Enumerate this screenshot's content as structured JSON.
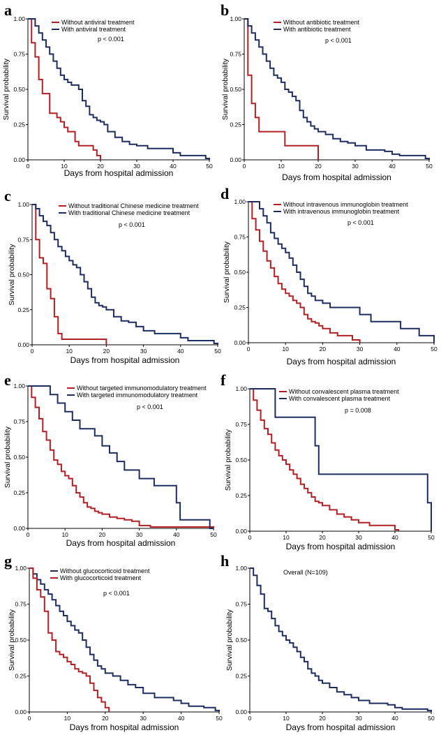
{
  "colors": {
    "red": "#b41f24",
    "navy": "#1d2d62",
    "axis": "#000000"
  },
  "chart_data": [
    {
      "type": "line",
      "panel": "a",
      "xlabel": "Days from hospital admission",
      "ylabel": "Survival probability",
      "xlim": [
        0,
        50
      ],
      "ylim": [
        0,
        1
      ],
      "xticks": [
        "0",
        "10",
        "20",
        "30",
        "40",
        "50"
      ],
      "yticks": [
        "0.00",
        "0.25",
        "0.50",
        "0.75",
        "1.00"
      ],
      "annotation": "p < 0.001",
      "series": [
        {
          "name": "Without antiviral treatment",
          "color": "red",
          "x": [
            0,
            1,
            2,
            3,
            4,
            5,
            6,
            7,
            8,
            9,
            10,
            11,
            12,
            13,
            14,
            15,
            16,
            17,
            18,
            19,
            20
          ],
          "y": [
            1.0,
            0.83,
            0.73,
            0.57,
            0.47,
            0.47,
            0.33,
            0.33,
            0.3,
            0.27,
            0.23,
            0.2,
            0.2,
            0.13,
            0.1,
            0.1,
            0.1,
            0.1,
            0.07,
            0.03,
            0.0
          ]
        },
        {
          "name": "With antiviral treatment",
          "color": "navy",
          "x": [
            0,
            2,
            3,
            4,
            5,
            6,
            7,
            8,
            9,
            10,
            11,
            12,
            13,
            14,
            15,
            16,
            17,
            18,
            19,
            20,
            21,
            22,
            24,
            26,
            28,
            30,
            33,
            38,
            40,
            42,
            46,
            49,
            50
          ],
          "y": [
            1.0,
            0.95,
            0.9,
            0.85,
            0.8,
            0.75,
            0.7,
            0.65,
            0.6,
            0.57,
            0.55,
            0.53,
            0.53,
            0.5,
            0.42,
            0.38,
            0.32,
            0.3,
            0.28,
            0.27,
            0.25,
            0.2,
            0.16,
            0.13,
            0.11,
            0.1,
            0.08,
            0.08,
            0.05,
            0.03,
            0.03,
            0.01,
            0.0
          ]
        }
      ]
    },
    {
      "type": "line",
      "panel": "b",
      "xlabel": "Days from hospital admission",
      "ylabel": "Survival probability",
      "xlim": [
        0,
        50
      ],
      "ylim": [
        0,
        1
      ],
      "xticks": [
        "0",
        "10",
        "20",
        "30",
        "40",
        "50"
      ],
      "yticks": [
        "0.00",
        "0.25",
        "0.50",
        "0.75",
        "1.00"
      ],
      "annotation": "p < 0.001",
      "series": [
        {
          "name": "Without antibiotic treatment",
          "color": "red",
          "x": [
            0,
            1,
            2,
            3,
            4,
            11,
            20
          ],
          "y": [
            1.0,
            0.6,
            0.4,
            0.3,
            0.2,
            0.1,
            0.0
          ]
        },
        {
          "name": "With antibiotic treatment",
          "color": "navy",
          "x": [
            0,
            1,
            2,
            3,
            4,
            5,
            6,
            7,
            8,
            9,
            10,
            11,
            12,
            13,
            14,
            15,
            16,
            17,
            18,
            19,
            20,
            22,
            24,
            26,
            28,
            30,
            33,
            38,
            40,
            42,
            46,
            49,
            50
          ],
          "y": [
            1.0,
            0.95,
            0.9,
            0.85,
            0.8,
            0.75,
            0.7,
            0.65,
            0.6,
            0.58,
            0.55,
            0.5,
            0.48,
            0.45,
            0.42,
            0.35,
            0.3,
            0.27,
            0.24,
            0.22,
            0.2,
            0.18,
            0.15,
            0.13,
            0.12,
            0.1,
            0.07,
            0.06,
            0.04,
            0.03,
            0.03,
            0.01,
            0.0
          ]
        }
      ]
    },
    {
      "type": "line",
      "panel": "c",
      "xlabel": "Days from hospital admission",
      "ylabel": "Survival probability",
      "xlim": [
        0,
        50
      ],
      "ylim": [
        0,
        1
      ],
      "xticks": [
        "0",
        "10",
        "20",
        "30",
        "40",
        "50"
      ],
      "yticks": [
        "0.00",
        "0.25",
        "0.50",
        "0.75",
        "1.00"
      ],
      "annotation": "p < 0.001",
      "series": [
        {
          "name": "Without traditional Chinese medicine treatment",
          "color": "red",
          "x": [
            0,
            1,
            2,
            3,
            4,
            5,
            6,
            7,
            8,
            10,
            20
          ],
          "y": [
            1.0,
            0.75,
            0.62,
            0.58,
            0.4,
            0.33,
            0.2,
            0.08,
            0.04,
            0.04,
            0.0
          ]
        },
        {
          "name": "With traditional Chinese medicine treatment",
          "color": "navy",
          "x": [
            0,
            1,
            2,
            3,
            4,
            5,
            6,
            7,
            8,
            9,
            10,
            11,
            12,
            13,
            14,
            15,
            16,
            17,
            18,
            19,
            20,
            22,
            24,
            26,
            28,
            30,
            33,
            38,
            40,
            42,
            46,
            49,
            50
          ],
          "y": [
            1.0,
            0.97,
            0.92,
            0.88,
            0.85,
            0.8,
            0.75,
            0.7,
            0.67,
            0.63,
            0.6,
            0.57,
            0.55,
            0.5,
            0.45,
            0.4,
            0.34,
            0.3,
            0.28,
            0.27,
            0.25,
            0.2,
            0.17,
            0.16,
            0.13,
            0.1,
            0.08,
            0.08,
            0.05,
            0.03,
            0.03,
            0.01,
            0.0
          ]
        }
      ]
    },
    {
      "type": "line",
      "panel": "d",
      "xlabel": "Days from hospital admission",
      "ylabel": "Survival probability",
      "xlim": [
        0,
        50
      ],
      "ylim": [
        0,
        1
      ],
      "xticks": [
        "0",
        "10",
        "20",
        "30",
        "40",
        "50"
      ],
      "yticks": [
        "0.00",
        "0.25",
        "0.50",
        "0.75",
        "1.00"
      ],
      "annotation": "p < 0.001",
      "series": [
        {
          "name": "Without intravenous immunoglobin treatment",
          "color": "red",
          "x": [
            0,
            1,
            2,
            3,
            4,
            5,
            6,
            7,
            8,
            9,
            10,
            11,
            12,
            13,
            14,
            15,
            16,
            17,
            18,
            19,
            20,
            22,
            24,
            26,
            28,
            30
          ],
          "y": [
            1.0,
            0.88,
            0.8,
            0.72,
            0.65,
            0.58,
            0.53,
            0.47,
            0.42,
            0.38,
            0.35,
            0.33,
            0.3,
            0.28,
            0.25,
            0.2,
            0.17,
            0.15,
            0.14,
            0.12,
            0.1,
            0.07,
            0.05,
            0.05,
            0.02,
            0.0
          ]
        },
        {
          "name": "With intravenous immunoglobin treatment",
          "color": "navy",
          "x": [
            0,
            3,
            4,
            5,
            6,
            7,
            8,
            9,
            10,
            11,
            12,
            13,
            14,
            15,
            16,
            17,
            18,
            20,
            22,
            24,
            30,
            33,
            40,
            41,
            46,
            49,
            50
          ],
          "y": [
            1.0,
            0.95,
            0.9,
            0.85,
            0.78,
            0.74,
            0.7,
            0.67,
            0.64,
            0.6,
            0.55,
            0.5,
            0.45,
            0.4,
            0.35,
            0.33,
            0.3,
            0.28,
            0.25,
            0.25,
            0.2,
            0.15,
            0.15,
            0.1,
            0.05,
            0.05,
            0.0
          ]
        }
      ]
    },
    {
      "type": "line",
      "panel": "e",
      "xlabel": "Days from hospital admission",
      "ylabel": "Survival probability",
      "xlim": [
        0,
        50
      ],
      "ylim": [
        0,
        1
      ],
      "xticks": [
        "0",
        "10",
        "20",
        "30",
        "40",
        "50"
      ],
      "yticks": [
        "0.00",
        "0.25",
        "0.50",
        "0.75",
        "1.00"
      ],
      "annotation": "p < 0.001",
      "series": [
        {
          "name": "Without targeted immunomodulatory treatment",
          "color": "red",
          "x": [
            0,
            1,
            2,
            3,
            4,
            5,
            6,
            7,
            8,
            9,
            10,
            11,
            12,
            13,
            14,
            15,
            16,
            17,
            18,
            19,
            20,
            22,
            24,
            26,
            28,
            30,
            33,
            40,
            50
          ],
          "y": [
            1.0,
            0.92,
            0.85,
            0.77,
            0.68,
            0.62,
            0.55,
            0.48,
            0.45,
            0.4,
            0.37,
            0.35,
            0.3,
            0.25,
            0.22,
            0.18,
            0.15,
            0.14,
            0.12,
            0.11,
            0.1,
            0.08,
            0.07,
            0.06,
            0.05,
            0.02,
            0.01,
            0.01,
            0.0
          ]
        },
        {
          "name": "With targeted immunomodulatory treatment",
          "color": "navy",
          "x": [
            0,
            6,
            8,
            10,
            12,
            14,
            15,
            18,
            20,
            22,
            24,
            26,
            30,
            34,
            40,
            41,
            49,
            50
          ],
          "y": [
            1.0,
            0.94,
            0.88,
            0.82,
            0.76,
            0.7,
            0.7,
            0.65,
            0.58,
            0.53,
            0.47,
            0.41,
            0.35,
            0.3,
            0.18,
            0.06,
            0.0,
            0.0
          ]
        }
      ]
    },
    {
      "type": "line",
      "panel": "f",
      "xlabel": "Days from hospital admission",
      "ylabel": "Survival probability",
      "xlim": [
        0,
        50
      ],
      "ylim": [
        0,
        1
      ],
      "xticks": [
        "0",
        "10",
        "20",
        "30",
        "40",
        "50"
      ],
      "yticks": [
        "0.00",
        "0.25",
        "0.50",
        "0.75",
        "1.00"
      ],
      "annotation": "p = 0.008",
      "series": [
        {
          "name": "Without convalescent plasma treatment",
          "color": "red",
          "x": [
            0,
            1,
            2,
            3,
            4,
            5,
            6,
            7,
            8,
            9,
            10,
            11,
            12,
            13,
            14,
            15,
            16,
            17,
            18,
            19,
            20,
            22,
            24,
            26,
            28,
            30,
            33,
            40,
            41
          ],
          "y": [
            1.0,
            0.92,
            0.85,
            0.78,
            0.72,
            0.68,
            0.62,
            0.57,
            0.53,
            0.5,
            0.47,
            0.43,
            0.4,
            0.37,
            0.33,
            0.3,
            0.27,
            0.24,
            0.21,
            0.2,
            0.18,
            0.15,
            0.12,
            0.1,
            0.08,
            0.06,
            0.04,
            0.01,
            0.0
          ]
        },
        {
          "name": "With convalescent plasma treatment",
          "color": "navy",
          "x": [
            0,
            7,
            18,
            19,
            49,
            50
          ],
          "y": [
            1.0,
            0.8,
            0.6,
            0.4,
            0.2,
            0.0
          ]
        }
      ]
    },
    {
      "type": "line",
      "panel": "g",
      "xlabel": "Days from hospital admission",
      "ylabel": "Survival probability",
      "xlim": [
        0,
        50
      ],
      "ylim": [
        0,
        1
      ],
      "xticks": [
        "0",
        "10",
        "20",
        "30",
        "40",
        "50"
      ],
      "yticks": [
        "0.00",
        "0.25",
        "0.50",
        "0.75",
        "1.00"
      ],
      "annotation": "p < 0.001",
      "series": [
        {
          "name": "Without glucocorticoid treatment",
          "color": "navy",
          "x": [
            0,
            1,
            2,
            3,
            4,
            5,
            6,
            7,
            8,
            9,
            10,
            11,
            12,
            13,
            14,
            15,
            16,
            17,
            18,
            19,
            20,
            22,
            24,
            26,
            28,
            30,
            33,
            38,
            40,
            42,
            46,
            49,
            50
          ],
          "y": [
            1.0,
            0.96,
            0.92,
            0.89,
            0.85,
            0.82,
            0.78,
            0.74,
            0.7,
            0.67,
            0.63,
            0.6,
            0.57,
            0.55,
            0.5,
            0.45,
            0.4,
            0.36,
            0.32,
            0.3,
            0.27,
            0.25,
            0.22,
            0.19,
            0.17,
            0.13,
            0.1,
            0.08,
            0.06,
            0.04,
            0.03,
            0.01,
            0.0
          ]
        },
        {
          "name": "With glucocorticoid  treatment",
          "color": "red",
          "x": [
            0,
            1,
            2,
            3,
            4,
            5,
            6,
            7,
            8,
            9,
            10,
            11,
            12,
            13,
            14,
            15,
            16,
            17,
            18,
            19,
            20,
            21
          ],
          "y": [
            1.0,
            0.93,
            0.85,
            0.8,
            0.7,
            0.55,
            0.5,
            0.42,
            0.4,
            0.38,
            0.35,
            0.33,
            0.3,
            0.28,
            0.27,
            0.25,
            0.2,
            0.15,
            0.1,
            0.07,
            0.03,
            0.0
          ]
        }
      ]
    },
    {
      "type": "line",
      "panel": "h",
      "xlabel": "Days from hospital admission",
      "ylabel": "Survival probability",
      "xlim": [
        0,
        50
      ],
      "ylim": [
        0,
        1
      ],
      "xticks": [
        "0",
        "10",
        "20",
        "30",
        "40",
        "50"
      ],
      "yticks": [
        "0.00",
        "0.25",
        "0.50",
        "0.75",
        "1.00"
      ],
      "annotation": "",
      "series": [
        {
          "name": "Overall (N=109)",
          "color": "navy",
          "x": [
            0,
            1,
            2,
            3,
            4,
            5,
            6,
            7,
            8,
            9,
            10,
            11,
            12,
            13,
            14,
            15,
            16,
            17,
            18,
            19,
            20,
            22,
            24,
            26,
            28,
            30,
            33,
            38,
            40,
            42,
            46,
            49,
            50
          ],
          "y": [
            1.0,
            0.95,
            0.88,
            0.82,
            0.72,
            0.7,
            0.65,
            0.6,
            0.56,
            0.53,
            0.5,
            0.48,
            0.45,
            0.42,
            0.38,
            0.35,
            0.3,
            0.27,
            0.25,
            0.22,
            0.2,
            0.17,
            0.14,
            0.12,
            0.1,
            0.08,
            0.06,
            0.05,
            0.03,
            0.02,
            0.02,
            0.01,
            0.0
          ]
        }
      ]
    }
  ]
}
